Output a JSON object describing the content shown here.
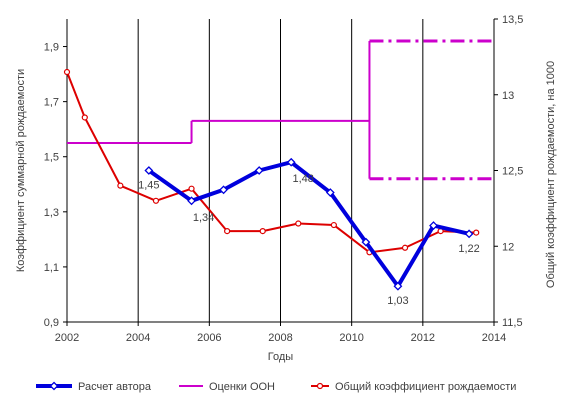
{
  "chart_data": {
    "type": "line",
    "xlabel": "Годы",
    "ylabel_left": "Коэффициент  суммарной рождаемости",
    "ylabel_right": "Общий коэффициент  рождаемости, на 1000",
    "xlim": [
      2002,
      2014
    ],
    "x_ticks": [
      "2002",
      "2004",
      "2006",
      "2008",
      "2010",
      "2012",
      "2014"
    ],
    "ylim_left": [
      0.9,
      2.0
    ],
    "y_ticks_left": [
      "0,9",
      "1,1",
      "1,3",
      "1,5",
      "1,7",
      "1,9"
    ],
    "ylim_right": [
      11.5,
      13.5
    ],
    "y_ticks_right": [
      "11,5",
      "12",
      "12,5",
      "13",
      "13,5"
    ],
    "grid_vertical_years": [
      2004,
      2006,
      2008,
      2010,
      2012
    ],
    "legend_position": "bottom",
    "series": [
      {
        "name": "Расчет автора",
        "axis": "left",
        "color": "#0000dd",
        "marker": "diamond",
        "x": [
          2004.3,
          2005.5,
          2006.4,
          2007.4,
          2008.3,
          2009.4,
          2010.4,
          2011.3,
          2012.3,
          2013.3
        ],
        "y": [
          1.45,
          1.34,
          1.38,
          1.45,
          1.48,
          1.37,
          1.19,
          1.03,
          1.25,
          1.22
        ]
      },
      {
        "name": "Оценки ООН",
        "axis": "left",
        "color": "#cc00cc",
        "marker": "none",
        "segments": [
          {
            "x": [
              2002,
              2005.5
            ],
            "y": [
              1.55,
              1.55
            ],
            "style": "solid"
          },
          {
            "x": [
              2005.5,
              2005.5
            ],
            "y": [
              1.55,
              1.63
            ],
            "style": "solid"
          },
          {
            "x": [
              2005.5,
              2010.5
            ],
            "y": [
              1.63,
              1.63
            ],
            "style": "solid"
          },
          {
            "x": [
              2010.5,
              2010.5
            ],
            "y": [
              1.42,
              1.92
            ],
            "style": "solid"
          },
          {
            "x": [
              2010.5,
              2014
            ],
            "y": [
              1.92,
              1.92
            ],
            "style": "dashdot"
          },
          {
            "x": [
              2010.5,
              2014
            ],
            "y": [
              1.42,
              1.42
            ],
            "style": "dashdot"
          }
        ]
      },
      {
        "name": "Общий коэффициент  рождаемости",
        "axis": "right",
        "color": "#dd0000",
        "marker": "circle",
        "x": [
          2002,
          2002.5,
          2003.5,
          2004.5,
          2005.5,
          2006.5,
          2007.5,
          2008.5,
          2009.5,
          2010.5,
          2011.5,
          2012.5,
          2013.5
        ],
        "y": [
          13.15,
          12.85,
          12.4,
          12.3,
          12.38,
          12.1,
          12.1,
          12.15,
          12.14,
          11.96,
          11.99,
          12.1,
          12.09
        ]
      }
    ],
    "annotations": [
      {
        "text": "1,45",
        "x": 2004.3,
        "y": 1.45
      },
      {
        "text": "1,34",
        "x": 2005.5,
        "y": 1.34
      },
      {
        "text": "1,48",
        "x": 2008.3,
        "y": 1.48
      },
      {
        "text": "1,03",
        "x": 2011.3,
        "y": 1.03
      },
      {
        "text": "1,22",
        "x": 2013.3,
        "y": 1.22
      }
    ]
  }
}
